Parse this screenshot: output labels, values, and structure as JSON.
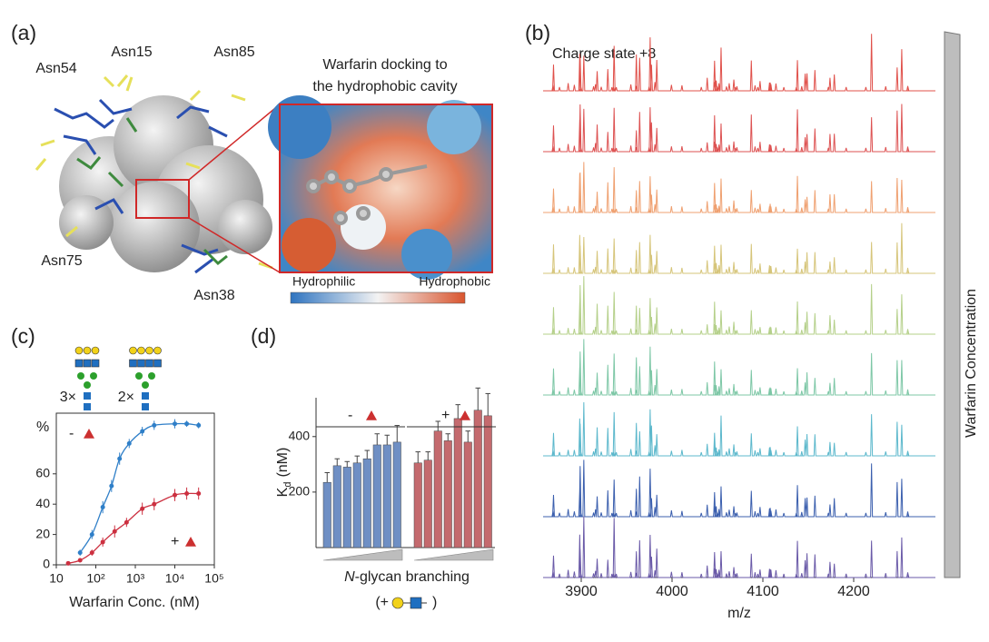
{
  "panels": {
    "a": "(a)",
    "b": "(b)",
    "c": "(c)",
    "d": "(d)"
  },
  "panel_a": {
    "residue_labels": [
      "Asn54",
      "Asn15",
      "Asn85",
      "Asn75",
      "Asn38"
    ],
    "inset_title": [
      "Warfarin docking to",
      "the hydrophobic cavity"
    ],
    "colorbar_labels": [
      "Hydrophilic",
      "Hydrophobic"
    ]
  },
  "chart_data": [
    {
      "type": "spectra",
      "annotation": "Charge state +8",
      "xlabel": "m/z",
      "side_label": "Warfarin Concentration",
      "xlim": [
        3858,
        4290
      ],
      "xticks": [
        3900,
        4000,
        4100,
        4200
      ],
      "trace_colors": [
        "#e0504a",
        "#dd5252",
        "#efa070",
        "#d6c57a",
        "#b5d08a",
        "#7dc7a6",
        "#5cb8cc",
        "#3b5fae",
        "#6a5aa8"
      ]
    },
    {
      "type": "line",
      "glycan_multipliers": [
        "3×",
        "2×"
      ],
      "ylabel": "%",
      "xlabel": "Warfarin Conc. (nM)",
      "xscale": "log",
      "xlim": [
        10,
        100000
      ],
      "xticks": [
        10,
        {
          "value": 100,
          "label": "10²"
        },
        {
          "value": 1000,
          "label": "10³"
        },
        {
          "value": 10000,
          "label": "10⁴"
        },
        {
          "value": 100000,
          "label": "10⁵"
        }
      ],
      "ylim": [
        0,
        100
      ],
      "yticks": [
        0,
        20,
        40,
        60
      ],
      "series": [
        {
          "name": "-",
          "color": "#2f7fc8",
          "x": [
            40,
            80,
            150,
            250,
            400,
            700,
            1500,
            3000,
            10000,
            20000,
            40000
          ],
          "values": [
            8,
            20,
            38,
            52,
            70,
            80,
            88,
            92,
            93,
            93,
            92
          ],
          "errors": [
            2,
            3,
            4,
            4,
            4,
            3,
            3,
            3,
            3,
            2,
            2
          ]
        },
        {
          "name": "+",
          "color": "#cc3040",
          "x": [
            20,
            40,
            80,
            150,
            300,
            600,
            1500,
            3000,
            10000,
            20000,
            40000
          ],
          "values": [
            1,
            3,
            8,
            15,
            22,
            28,
            37,
            40,
            46,
            47,
            47
          ],
          "errors": [
            1,
            1,
            2,
            3,
            4,
            3,
            4,
            4,
            4,
            4,
            4
          ]
        }
      ]
    },
    {
      "type": "bar",
      "ylabel": "K",
      "ylabel_sub": "d",
      "ylabel_unit": "(nM)",
      "xlabel_italic": "N",
      "xlabel": "-glycan branching",
      "xnote": [
        "(+",
        ")"
      ],
      "ylim": [
        0,
        540
      ],
      "yticks": [
        200,
        400
      ],
      "series": [
        {
          "name": "-",
          "color": "#6f8fc4",
          "values": [
            235,
            295,
            290,
            305,
            320,
            370,
            370,
            380
          ],
          "errors": [
            35,
            25,
            20,
            25,
            30,
            40,
            35,
            60
          ]
        },
        {
          "name": "+",
          "color": "#c46a6e",
          "values": [
            305,
            315,
            420,
            385,
            465,
            380,
            495,
            475
          ],
          "errors": [
            40,
            30,
            35,
            25,
            50,
            40,
            80,
            80
          ]
        }
      ]
    }
  ]
}
